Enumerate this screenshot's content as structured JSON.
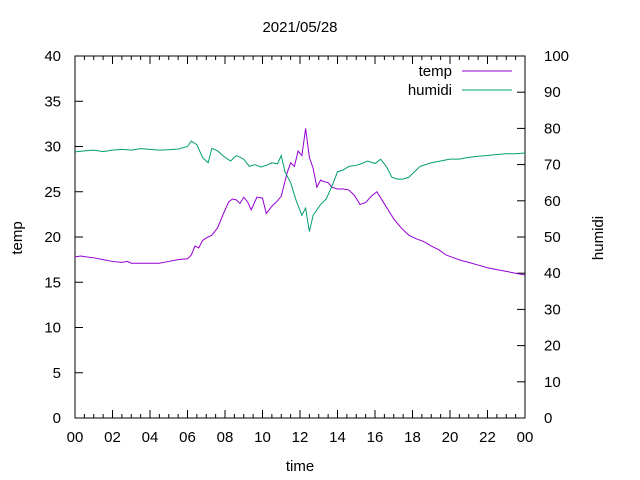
{
  "chart_data": {
    "type": "line",
    "title": "2021/05/28",
    "xlabel": "time",
    "ylabel": "temp",
    "y2label": "humidi",
    "xlim": [
      0,
      24
    ],
    "ylim": [
      0,
      40
    ],
    "y2lim": [
      0,
      100
    ],
    "x_tick_labels": [
      "00",
      "02",
      "04",
      "06",
      "08",
      "10",
      "12",
      "14",
      "16",
      "18",
      "20",
      "22",
      "00"
    ],
    "y_tick_labels": [
      "0",
      "5",
      "10",
      "15",
      "20",
      "25",
      "30",
      "35",
      "40"
    ],
    "y2_tick_labels": [
      "0",
      "10",
      "20",
      "30",
      "40",
      "50",
      "60",
      "70",
      "80",
      "90",
      "100"
    ],
    "legend_position": "top-right",
    "grid": false,
    "series": [
      {
        "name": "temp",
        "axis": "y",
        "color": "#9400d3",
        "x": [
          0.0,
          0.3,
          0.6,
          1.0,
          1.5,
          2.0,
          2.5,
          2.8,
          3.0,
          3.5,
          4.0,
          4.5,
          5.0,
          5.5,
          6.0,
          6.2,
          6.4,
          6.6,
          6.8,
          7.0,
          7.3,
          7.6,
          7.9,
          8.2,
          8.4,
          8.6,
          8.8,
          9.0,
          9.2,
          9.4,
          9.7,
          10.0,
          10.2,
          10.5,
          10.8,
          11.0,
          11.3,
          11.5,
          11.7,
          11.9,
          12.1,
          12.3,
          12.5,
          12.7,
          12.9,
          13.1,
          13.3,
          13.5,
          13.7,
          14.0,
          14.3,
          14.6,
          14.9,
          15.2,
          15.5,
          15.8,
          16.1,
          16.4,
          16.7,
          17.0,
          17.4,
          17.8,
          18.2,
          18.6,
          19.0,
          19.4,
          19.8,
          20.2,
          20.6,
          21.0,
          21.5,
          22.0,
          22.5,
          23.0,
          23.5,
          24.0
        ],
        "values": [
          17.8,
          17.9,
          17.8,
          17.7,
          17.5,
          17.3,
          17.2,
          17.3,
          17.1,
          17.1,
          17.1,
          17.1,
          17.3,
          17.5,
          17.6,
          18.0,
          19.0,
          18.8,
          19.6,
          19.9,
          20.2,
          21.0,
          22.5,
          23.9,
          24.2,
          24.1,
          23.7,
          24.4,
          23.9,
          23.0,
          24.4,
          24.3,
          22.6,
          23.4,
          24.0,
          24.5,
          27.0,
          28.2,
          27.8,
          29.5,
          29.0,
          32.0,
          28.8,
          27.6,
          25.5,
          26.3,
          26.1,
          26.0,
          25.5,
          25.3,
          25.3,
          25.2,
          24.6,
          23.6,
          23.8,
          24.5,
          25.0,
          24.0,
          23.0,
          22.0,
          21.0,
          20.2,
          19.8,
          19.5,
          19.0,
          18.6,
          18.0,
          17.7,
          17.4,
          17.2,
          16.9,
          16.6,
          16.4,
          16.2,
          16.0,
          15.8
        ]
      },
      {
        "name": "humidi",
        "axis": "y2",
        "color": "#009e73",
        "x": [
          0.0,
          0.5,
          1.0,
          1.5,
          2.0,
          2.5,
          3.0,
          3.5,
          4.0,
          4.5,
          5.0,
          5.5,
          6.0,
          6.2,
          6.5,
          6.8,
          7.1,
          7.3,
          7.6,
          8.0,
          8.3,
          8.6,
          9.0,
          9.3,
          9.6,
          9.9,
          10.2,
          10.5,
          10.8,
          11.0,
          11.2,
          11.5,
          11.8,
          12.1,
          12.3,
          12.5,
          12.7,
          12.9,
          13.1,
          13.4,
          13.7,
          14.0,
          14.3,
          14.6,
          15.0,
          15.3,
          15.6,
          16.0,
          16.3,
          16.6,
          16.9,
          17.2,
          17.5,
          17.8,
          18.1,
          18.4,
          18.7,
          19.0,
          19.5,
          20.0,
          20.5,
          21.0,
          21.5,
          22.0,
          22.5,
          23.0,
          23.5,
          24.0
        ],
        "values": [
          73.5,
          73.8,
          74.0,
          73.6,
          74.0,
          74.2,
          74.0,
          74.4,
          74.2,
          74.0,
          74.1,
          74.3,
          75.0,
          76.5,
          75.5,
          72.0,
          70.5,
          74.5,
          73.8,
          72.0,
          71.0,
          72.5,
          71.5,
          69.5,
          70.0,
          69.3,
          69.8,
          70.5,
          70.2,
          72.5,
          68.0,
          65.0,
          60.0,
          56.0,
          58.0,
          51.5,
          56.0,
          57.5,
          59.0,
          60.5,
          64.0,
          68.0,
          68.5,
          69.5,
          69.8,
          70.3,
          71.0,
          70.3,
          71.5,
          69.5,
          66.5,
          66.0,
          66.0,
          66.5,
          68.0,
          69.5,
          70.0,
          70.5,
          71.0,
          71.5,
          71.5,
          72.0,
          72.3,
          72.5,
          72.8,
          73.0,
          73.0,
          73.2
        ]
      }
    ]
  }
}
